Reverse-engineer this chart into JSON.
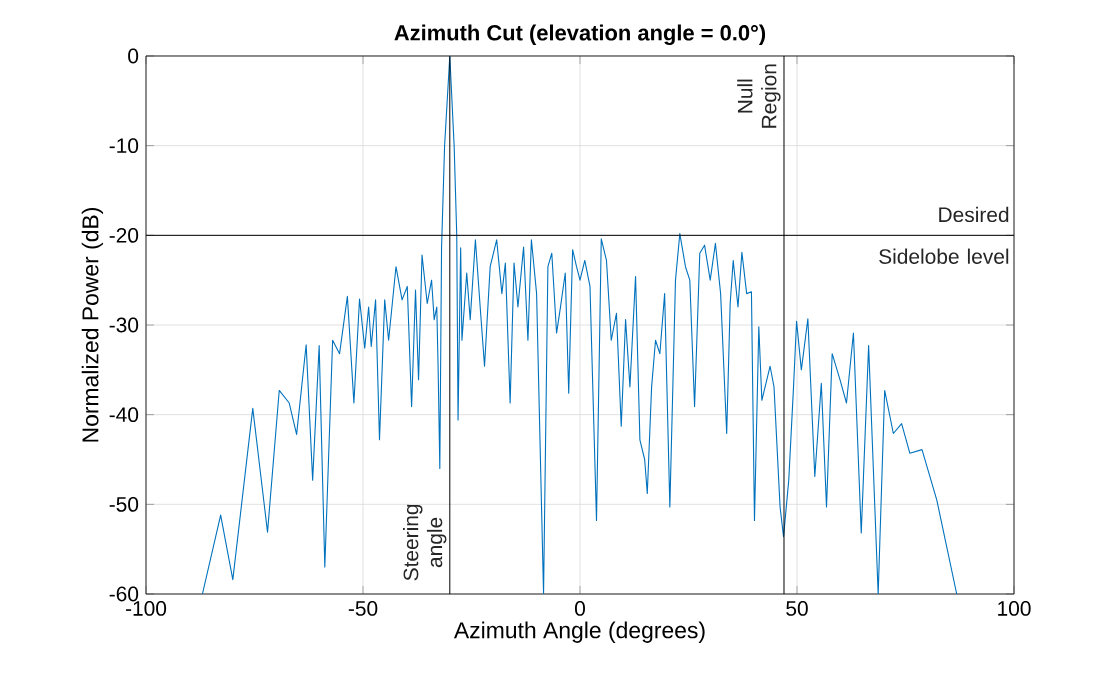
{
  "chart_data": {
    "type": "line",
    "title": "Azimuth Cut (elevation angle = 0.0°)",
    "xlabel": "Azimuth Angle (degrees)",
    "ylabel": "Normalized Power (dB)",
    "xlim": [
      -100,
      100
    ],
    "ylim": [
      -60,
      0
    ],
    "xticks": [
      -100,
      -50,
      0,
      50,
      100
    ],
    "yticks": [
      -60,
      -50,
      -40,
      -30,
      -20,
      -10,
      0
    ],
    "grid": true,
    "series": [
      {
        "color": "#0072bd",
        "x": [
          -87,
          -82.8,
          -80,
          -75.4,
          -72,
          -69.3,
          -67,
          -65.3,
          -63.1,
          -61.6,
          -60.1,
          -58.8,
          -57,
          -55.4,
          -53.6,
          -52.1,
          -50.8,
          -49.6,
          -48.7,
          -48.1,
          -47.1,
          -46.2,
          -45,
          -44.1,
          -42.4,
          -41,
          -39.8,
          -38.8,
          -37.9,
          -37.2,
          -36.4,
          -35.2,
          -34.2,
          -33.6,
          -33,
          -32.7,
          -32.3,
          -31.9,
          -31.2,
          -30,
          -29,
          -28.4,
          -28.1,
          -27.5,
          -27.2,
          -26.1,
          -25.3,
          -24.1,
          -23,
          -22,
          -20.7,
          -19.2,
          -18,
          -17.2,
          -16.1,
          -15.2,
          -14.3,
          -13,
          -12,
          -11.2,
          -10,
          -8.4,
          -7.4,
          -6.5,
          -5.4,
          -4.5,
          -3.4,
          -2.6,
          -1.7,
          -0.8,
          0,
          1.1,
          2.3,
          3.8,
          4.9,
          6.1,
          7.2,
          8.4,
          9.5,
          10.5,
          11.5,
          12.8,
          13.8,
          14.9,
          15.5,
          16.5,
          17.4,
          18.4,
          19.5,
          20.7,
          22,
          23,
          24.3,
          25.3,
          26.4,
          27.6,
          28.7,
          30,
          31.2,
          32.4,
          33.8,
          34.6,
          35.3,
          36.4,
          37.3,
          38.4,
          39.5,
          40.2,
          41.2,
          41.9,
          43.8,
          44.7,
          46.1,
          46.9,
          48.1,
          49.2,
          49.9,
          51,
          52.5,
          54.1,
          55.6,
          56.8,
          58.1,
          59.9,
          61.4,
          63,
          64.8,
          66.5,
          68.7,
          70.2,
          72.2,
          74.1,
          76,
          78.8,
          82.2,
          86.8
        ],
        "values": [
          -60,
          -51.2,
          -58.4,
          -39.3,
          -53.1,
          -37.3,
          -38.7,
          -42.2,
          -32.2,
          -47.3,
          -32.3,
          -57,
          -31.7,
          -33.2,
          -26.8,
          -38.7,
          -27.1,
          -32.6,
          -28,
          -32.4,
          -27.2,
          -42.8,
          -27.2,
          -31.7,
          -23.5,
          -27.2,
          -25.7,
          -39.1,
          -26.1,
          -36.1,
          -22.2,
          -27.6,
          -25,
          -29.4,
          -28,
          -34.6,
          -46,
          -21.4,
          -10,
          0,
          -10,
          -20,
          -40.6,
          -21.4,
          -31.7,
          -24.2,
          -29.4,
          -20.5,
          -28,
          -34.6,
          -23.5,
          -20.5,
          -26.5,
          -23.1,
          -38.7,
          -23.1,
          -28,
          -21.3,
          -31.7,
          -20.5,
          -26.5,
          -60,
          -23.5,
          -22,
          -30.9,
          -28,
          -24.2,
          -37.6,
          -21.6,
          -23.5,
          -25,
          -22.8,
          -25.7,
          -51.8,
          -20.4,
          -22.8,
          -31.7,
          -28.7,
          -41.3,
          -29.4,
          -36.9,
          -24.6,
          -42.8,
          -45,
          -48.8,
          -36.9,
          -31.7,
          -33.2,
          -26.5,
          -50.3,
          -25,
          -19.8,
          -23.5,
          -25,
          -39.1,
          -22,
          -21.1,
          -25,
          -20.9,
          -26.5,
          -42.1,
          -27.6,
          -22.8,
          -28,
          -21.9,
          -26.5,
          -26.3,
          -51.8,
          -30.2,
          -38.4,
          -34.6,
          -36.9,
          -50.3,
          -53.6,
          -47.3,
          -36.9,
          -29.6,
          -35,
          -29.3,
          -46.9,
          -36.5,
          -50.3,
          -33.2,
          -36.1,
          -38.7,
          -30.9,
          -53.2,
          -32.3,
          -60,
          -37.3,
          -42.1,
          -41,
          -44.3,
          -43.9,
          -49.5,
          -60
        ]
      }
    ],
    "ref_lines": [
      {
        "axis": "x",
        "value": -30,
        "label": "Steering angle",
        "color": "#000000"
      },
      {
        "axis": "x",
        "value": 47,
        "label": "Null Region",
        "color": "#000000"
      },
      {
        "axis": "y",
        "value": -20,
        "label": "Desired Sidelobe level",
        "color": "#000000"
      }
    ]
  }
}
